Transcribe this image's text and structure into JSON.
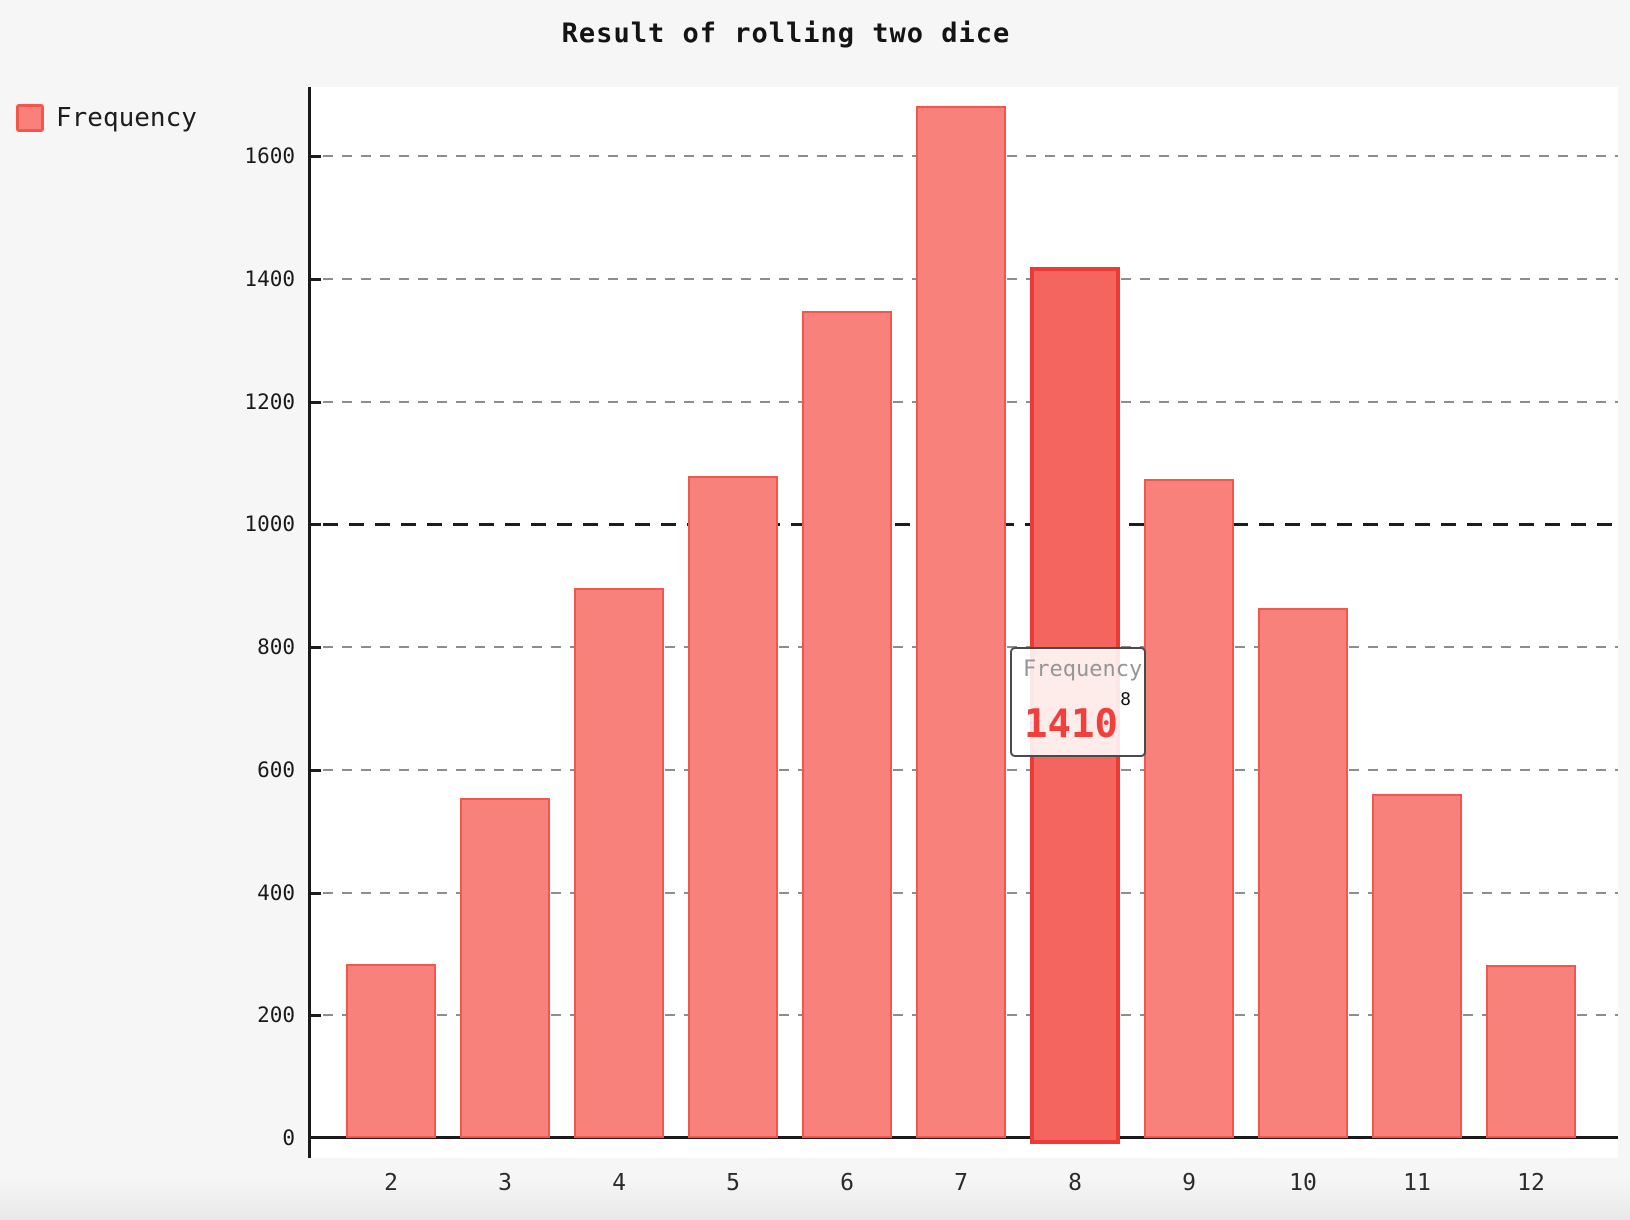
{
  "title": "Result of rolling two dice",
  "legend": {
    "label": "Frequency"
  },
  "tooltip": {
    "series_label": "Frequency",
    "category": "8",
    "value": "1410"
  },
  "colors": {
    "page_bg": "#f6f6f6",
    "plot_bg": "#ffffff",
    "axis": "#1a1a1a",
    "gridline": "#8d8d8d",
    "gridline_emphasis": "#1c1c1c",
    "bar_fill": "#f8817b",
    "bar_border": "#f4564e",
    "bar_hover_fill": "#f5655f",
    "bar_hover_border": "#ef3a34",
    "tooltip_value_text": "#f1403c",
    "tooltip_series_text": "#969696"
  },
  "chart_data": {
    "type": "bar",
    "title": "Result of rolling two dice",
    "categories": [
      "2",
      "3",
      "4",
      "5",
      "6",
      "7",
      "8",
      "9",
      "10",
      "11",
      "12"
    ],
    "series": [
      {
        "name": "Frequency",
        "values": [
          280,
          550,
          893,
          1075,
          1344,
          1679,
          1410,
          1070,
          860,
          557,
          278
        ]
      }
    ],
    "highlighted_category": "8",
    "highlighted_value": 1410,
    "xlabel": "",
    "ylabel": "",
    "ylim": [
      0,
      1710
    ],
    "yticks": [
      0,
      200,
      400,
      600,
      800,
      1000,
      1200,
      1400,
      1600
    ],
    "emphasized_ytick": 1000,
    "grid": "horizontal dashed",
    "legend_position": "top-left",
    "tooltip_visible_for": "8"
  }
}
